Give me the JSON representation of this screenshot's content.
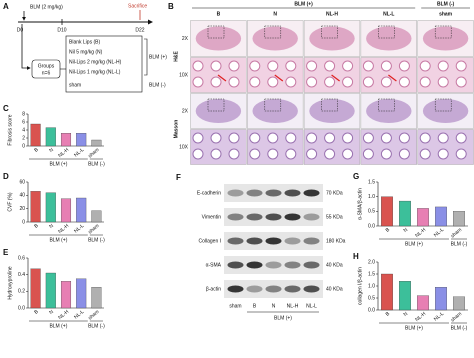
{
  "panel_a": {
    "label": "A",
    "drug": "BLM (2 mg/kg)",
    "sacrifice": "Sacrifice",
    "days": [
      "D0",
      "D10",
      "D22"
    ],
    "groups_title": "Groups",
    "groups_n": "n=6",
    "treatments": [
      "Blank Lips (B)",
      "Nil 5 mg/kg (N)",
      "Nil-Lips 2 mg/kg (NL-H)",
      "Nil-Lips 1 mg/kg (NL-L)",
      "sham"
    ],
    "brackets": [
      "BLM (+)",
      "BLM (-)"
    ]
  },
  "panel_b": {
    "label": "B",
    "groups": [
      "BLM (+)",
      "BLM (-)"
    ],
    "columns": [
      "B",
      "N",
      "NL-H",
      "NL-L",
      "sham"
    ],
    "magnifications": [
      "2X",
      "10X",
      "2X",
      "10X"
    ],
    "stains": [
      "H&E",
      "Masson"
    ]
  },
  "panel_f": {
    "label": "F",
    "proteins": [
      "E-cadherin",
      "Vimentin",
      "Collagen I",
      "α-SMA",
      "β-actin"
    ],
    "sizes": [
      "70 KDa",
      "55 KDa",
      "180 KDa",
      "40 KDa",
      "40 KDa"
    ],
    "lanes": [
      "sham",
      "B",
      "N",
      "NL-H",
      "NL-L"
    ],
    "group": "BLM (+)"
  },
  "chart_data": [
    {
      "type": "bar",
      "panel": "C",
      "ylabel": "Fibrosis score",
      "categories": [
        "B",
        "N",
        "NL-H",
        "NL-L",
        "sham"
      ],
      "values": [
        5.5,
        4.6,
        3.2,
        3.2,
        1.5
      ],
      "colors": [
        "#d9534f",
        "#3cbf9a",
        "#e77fb3",
        "#8a8fe6",
        "#b0b0b0"
      ],
      "ylim": [
        0,
        8
      ],
      "yticks": [
        0,
        2,
        4,
        6,
        8
      ],
      "groups": [
        "BLM (+)",
        "BLM (-)"
      ]
    },
    {
      "type": "bar",
      "panel": "D",
      "ylabel": "CVF (%)",
      "categories": [
        "B",
        "N",
        "NL-H",
        "NL-L",
        "sham"
      ],
      "values": [
        46,
        44,
        35,
        36,
        17
      ],
      "colors": [
        "#d9534f",
        "#3cbf9a",
        "#e77fb3",
        "#8a8fe6",
        "#b0b0b0"
      ],
      "ylim": [
        0,
        60
      ],
      "yticks": [
        0,
        20,
        40,
        60
      ],
      "groups": [
        "BLM (+)",
        "BLM (-)"
      ]
    },
    {
      "type": "bar",
      "panel": "E",
      "ylabel": "Hydroxyproline",
      "categories": [
        "B",
        "N",
        "NL-H",
        "NL-L",
        "sham"
      ],
      "values": [
        0.47,
        0.42,
        0.32,
        0.35,
        0.25
      ],
      "colors": [
        "#d9534f",
        "#3cbf9a",
        "#e77fb3",
        "#8a8fe6",
        "#b0b0b0"
      ],
      "ylim": [
        0,
        0.6
      ],
      "yticks": [
        {
          "value": 0,
          "label": "0.0"
        },
        0.2,
        0.4,
        0.6
      ],
      "groups": [
        "BLM (+)",
        "BLM (-)"
      ]
    },
    {
      "type": "bar",
      "panel": "G",
      "ylabel": "α-SMA/β-actin",
      "categories": [
        "B",
        "N",
        "NL-H",
        "NL-L",
        "sham"
      ],
      "values": [
        1.0,
        0.85,
        0.6,
        0.65,
        0.5
      ],
      "colors": [
        "#d9534f",
        "#3cbf9a",
        "#e77fb3",
        "#8a8fe6",
        "#b0b0b0"
      ],
      "ylim": [
        0,
        1.5
      ],
      "yticks": [
        {
          "value": 0,
          "label": "0.0"
        },
        0.5,
        {
          "value": 1,
          "label": "1.0"
        },
        1.5
      ],
      "groups": [
        "BLM (+)",
        "BLM (-)"
      ]
    },
    {
      "type": "bar",
      "panel": "H",
      "ylabel": "collagen I/β-actin",
      "categories": [
        "B",
        "N",
        "NL-H",
        "NL-L",
        "sham"
      ],
      "values": [
        1.5,
        1.2,
        0.6,
        0.95,
        0.55
      ],
      "colors": [
        "#d9534f",
        "#3cbf9a",
        "#e77fb3",
        "#8a8fe6",
        "#b0b0b0"
      ],
      "ylim": [
        0,
        2
      ],
      "yticks": [
        {
          "value": 0,
          "label": "0.0"
        },
        0.5,
        {
          "value": 1,
          "label": "1.0"
        },
        1.5,
        {
          "value": 2,
          "label": "2.0"
        }
      ],
      "groups": [
        "BLM (+)",
        "BLM (-)"
      ]
    }
  ]
}
